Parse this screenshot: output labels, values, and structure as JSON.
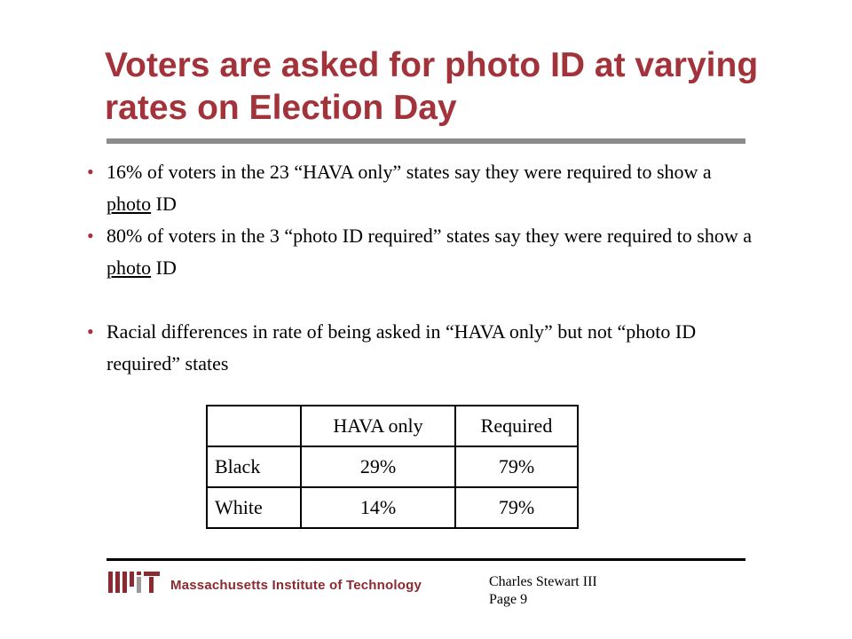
{
  "slide": {
    "title": "Voters are asked for photo ID at varying rates on Election Day"
  },
  "bullets": [
    {
      "before": "16% of voters in the 23 “HAVA only” states say they were required to show a ",
      "underlined": "photo",
      "after": " ID"
    },
    {
      "before": "80% of voters in the 3 “photo ID required” states say they were required to show a ",
      "underlined": "photo",
      "after": " ID"
    },
    {
      "before": "Racial differences in rate of being asked in “HAVA only” but not “photo ID required” states",
      "underlined": "",
      "after": ""
    }
  ],
  "table": {
    "headers": [
      "",
      "HAVA only",
      "Required"
    ],
    "rows": [
      [
        "Black",
        "29%",
        "79%"
      ],
      [
        "White",
        "14%",
        "79%"
      ]
    ]
  },
  "footer": {
    "logo_text": "MIT",
    "institution": "Massachusetts Institute of Technology",
    "author": "Charles Stewart III",
    "page": "Page 9"
  },
  "colors": {
    "title": "#a3333a",
    "title_rule": "#8c8c8c",
    "logo": "#8a2b31"
  }
}
